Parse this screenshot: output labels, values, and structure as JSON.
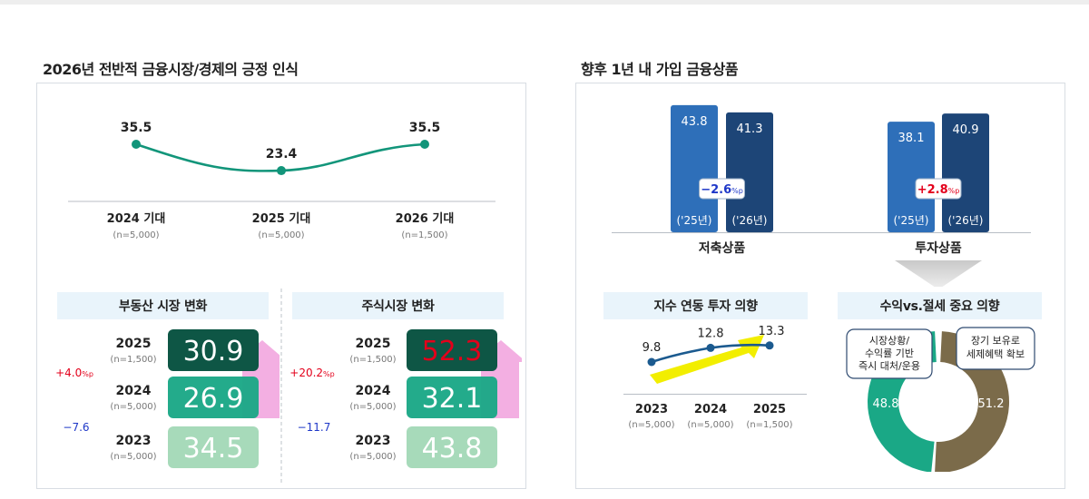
{
  "titles": {
    "left": "2026년 전반적 금융시장/경제의 긍정 인식",
    "right": "향후 1년 내 가입 금융상품"
  },
  "colors": {
    "line_green": "#12957a",
    "dark_green": "#0e5645",
    "mid_green": "#1aa886",
    "light_green": "#a3d9b7",
    "dark_blue": "#1d4577",
    "mid_blue": "#2e6fb9",
    "yellow": "#f2ee00",
    "pink": "#f2a6df",
    "navy_line": "#1b5a8f",
    "brown": "#7b6b4a",
    "red": "#e3001b",
    "blue_text": "#1f38c8"
  },
  "chart_data": [
    {
      "id": "positive_perception",
      "type": "line",
      "categories": [
        "2024 기대",
        "2025 기대",
        "2026 기대"
      ],
      "samples": [
        "(n=5,000)",
        "(n=5,000)",
        "(n=1,500)"
      ],
      "values": [
        35.5,
        23.4,
        35.5
      ],
      "labels": [
        "35.5",
        "23.4",
        "35.5"
      ]
    },
    {
      "id": "real_estate",
      "type": "table",
      "header": "부동산 시장 변화",
      "rows": [
        {
          "year": "2025",
          "n": "(n=1,500)",
          "value": 30.9,
          "label": "30.9"
        },
        {
          "year": "2024",
          "n": "(n=5,000)",
          "value": 26.9,
          "label": "26.9"
        },
        {
          "year": "2023",
          "n": "(n=5,000)",
          "value": 34.5,
          "label": "34.5"
        }
      ],
      "changes": [
        {
          "num": "+4.0",
          "unit": "%p"
        },
        {
          "num": "−7.6",
          "unit": ""
        }
      ]
    },
    {
      "id": "stock_market",
      "type": "table",
      "header": "주식시장 변화",
      "rows": [
        {
          "year": "2025",
          "n": "(n=1,500)",
          "value": 52.3,
          "label": "52.3"
        },
        {
          "year": "2024",
          "n": "(n=5,000)",
          "value": 32.1,
          "label": "32.1"
        },
        {
          "year": "2023",
          "n": "(n=5,000)",
          "value": 43.8,
          "label": "43.8"
        }
      ],
      "changes": [
        {
          "num": "+20.2",
          "unit": "%p"
        },
        {
          "num": "−11.7",
          "unit": ""
        }
      ]
    },
    {
      "id": "products",
      "type": "bar",
      "categories": [
        "저축상품",
        "투자상품"
      ],
      "series": [
        {
          "name": "('25년)",
          "values": [
            43.8,
            38.1
          ],
          "labels": [
            "43.8",
            "38.1"
          ]
        },
        {
          "name": "('26년)",
          "values": [
            41.3,
            40.9
          ],
          "labels": [
            "41.3",
            "40.9"
          ]
        }
      ],
      "changes": [
        {
          "num": "−2.6",
          "unit": "%p"
        },
        {
          "num": "+2.8",
          "unit": "%p"
        }
      ]
    },
    {
      "id": "index_linked",
      "type": "line",
      "header": "지수 연동 투자 의향",
      "categories": [
        "2023",
        "2024",
        "2025"
      ],
      "samples": [
        "(n=5,000)",
        "(n=5,000)",
        "(n=1,500)"
      ],
      "values": [
        9.8,
        12.8,
        13.3
      ],
      "labels": [
        "9.8",
        "12.8",
        "13.3"
      ]
    },
    {
      "id": "tax_benefit",
      "type": "pie",
      "header": "수익vs.절세 중요 의향",
      "slices": [
        {
          "value": 48.8,
          "label": "48.8",
          "callout": [
            "시장상황/",
            "수익률 기반",
            "즉시 대처/운용"
          ]
        },
        {
          "value": 51.2,
          "label": "51.2",
          "callout": [
            "장기 보유로",
            "세제혜택 확보"
          ]
        }
      ]
    }
  ]
}
